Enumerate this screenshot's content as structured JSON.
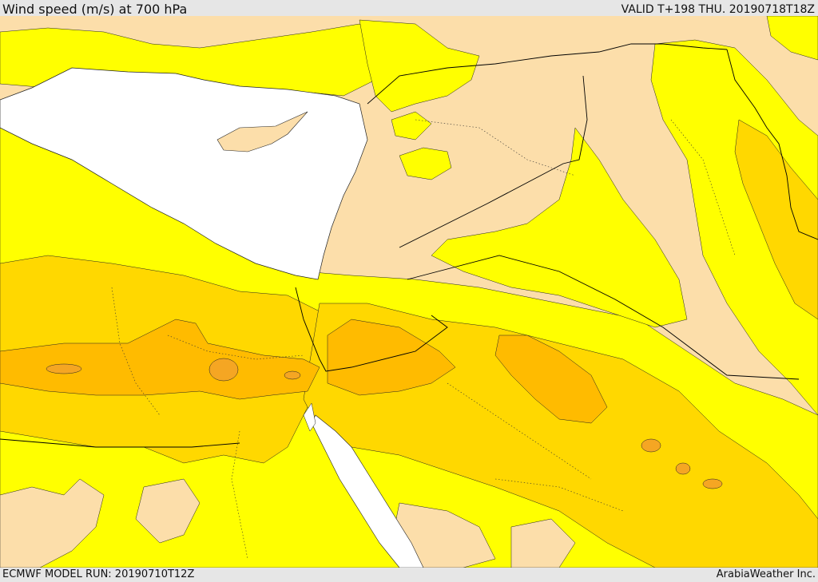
{
  "header": {
    "title": "Wind speed (m/s) at 700 hPa",
    "valid": "VALID T+198 THU. 20190718T18Z"
  },
  "footer": {
    "model_run": "ECMWF MODEL RUN: 20190710T12Z",
    "credit": "ArabiaWeather Inc."
  },
  "colors": {
    "sea": "#ffffff",
    "band_lt_5": "#fcdeaa",
    "band_5_10": "#ffff00",
    "band_10_15": "#ffd800",
    "band_15_20": "#ffbb00",
    "band_gt_20": "#f5a623",
    "border": "#000000"
  }
}
